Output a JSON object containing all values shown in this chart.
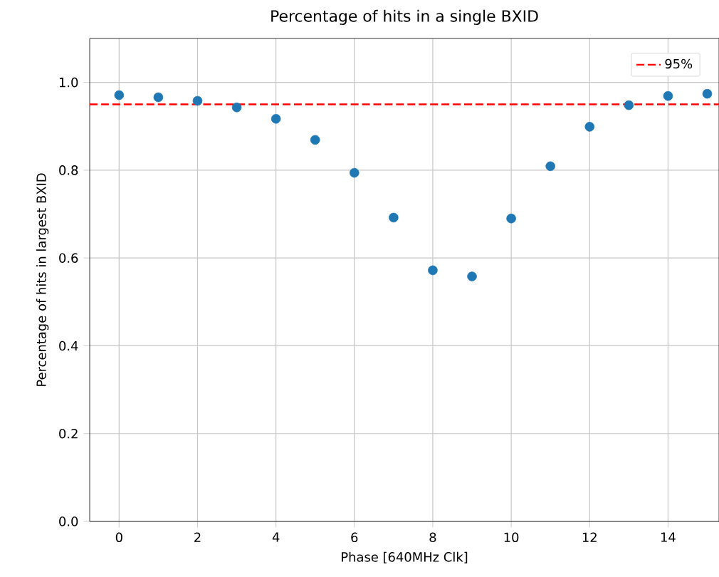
{
  "chart_data": {
    "type": "scatter",
    "title": "Percentage of hits in a single BXID",
    "xlabel": "Phase [640MHz Clk]",
    "ylabel": "Percentage of hits in largest BXID",
    "x": [
      0,
      1,
      2,
      3,
      4,
      5,
      6,
      7,
      8,
      9,
      10,
      11,
      12,
      13,
      14,
      15
    ],
    "series": [
      {
        "color": "#1f77b4",
        "values": [
          0.971,
          0.966,
          0.958,
          0.943,
          0.917,
          0.869,
          0.794,
          0.692,
          0.572,
          0.558,
          0.69,
          0.809,
          0.899,
          0.948,
          0.969,
          0.974
        ]
      }
    ],
    "xlim": [
      -0.75,
      15.3
    ],
    "ylim": [
      0,
      1.1
    ],
    "xticks": [
      0,
      2,
      4,
      6,
      8,
      10,
      12,
      14
    ],
    "yticks": [
      {
        "value": 0,
        "label": "0.0"
      },
      {
        "value": 0.2,
        "label": "0.2"
      },
      {
        "value": 0.4,
        "label": "0.4"
      },
      {
        "value": 0.6,
        "label": "0.6"
      },
      {
        "value": 0.8,
        "label": "0.8"
      },
      {
        "value": 1,
        "label": "1.0"
      }
    ],
    "ref_lines": [
      {
        "axis": "y",
        "value": 0.95,
        "label": "95%",
        "color": "#ff0000",
        "line_style": "dashed"
      }
    ],
    "grid": true,
    "legend": "top right",
    "marker": "circle"
  }
}
